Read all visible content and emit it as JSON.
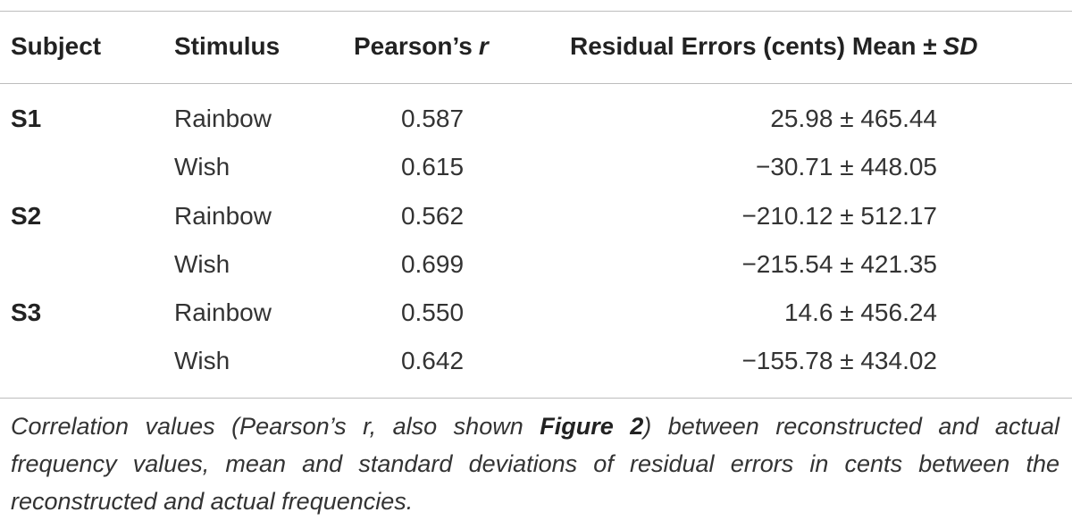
{
  "table": {
    "header": [
      {
        "text": "Subject"
      },
      {
        "text": "Stimulus"
      },
      {
        "text": "Pearson’s",
        "italic": "r"
      },
      {
        "text": "Residual Errors (cents) Mean ±",
        "italic": "SD"
      }
    ],
    "rows": [
      [
        "S1",
        "Rainbow",
        "0.587",
        "25.98 ± 465.44"
      ],
      [
        null,
        "Wish",
        "0.615",
        "−30.71 ± 448.05"
      ],
      [
        "S2",
        "Rainbow",
        "0.562",
        "−210.12 ± 512.17"
      ],
      [
        null,
        "Wish",
        "0.699",
        "−215.54 ± 421.35"
      ],
      [
        "S3",
        "Rainbow",
        "0.550",
        "14.6 ± 456.24"
      ],
      [
        null,
        "Wish",
        "0.642",
        "−155.78 ± 434.02"
      ]
    ]
  },
  "caption": {
    "before": "Correlation values (Pearson’s r, also shown ",
    "bold": "Figure 2",
    "after": ") between reconstructed and actual frequency values, mean and standard deviations of residual errors in cents between the reconstructed and actual frequencies."
  }
}
